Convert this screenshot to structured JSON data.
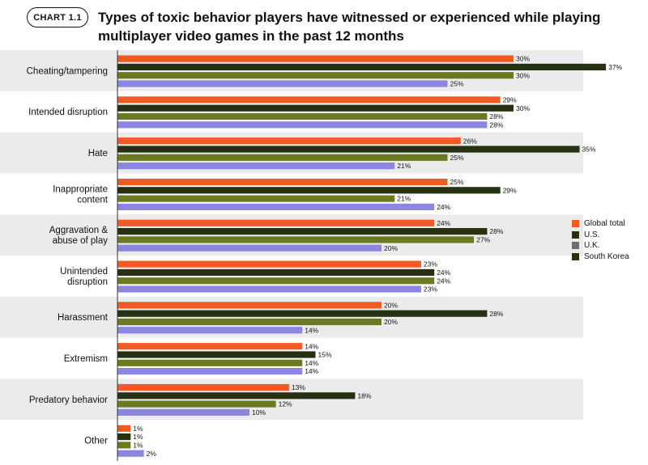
{
  "badge": "CHART 1.1",
  "title_line1": "Types of toxic behavior players have witnessed or experienced while playing",
  "title_line2": "multiplayer video games in the past 12 months",
  "colors": {
    "band": "#ebebeb",
    "axis": "#333333",
    "series": [
      "#f15a22",
      "#263112",
      "#6b7a1e",
      "#8c86e0"
    ],
    "legend_swatches": [
      "#f15a22",
      "#263112",
      "#6e6e6e",
      "#263112"
    ]
  },
  "chart_data": {
    "type": "bar",
    "orientation": "horizontal",
    "title": "Types of toxic behavior players have witnessed or experienced while playing multiplayer video games in the past 12 months",
    "categories": [
      [
        "Cheating/tampering"
      ],
      [
        "Intended disruption"
      ],
      [
        "Hate"
      ],
      [
        "Inappropriate",
        "content"
      ],
      [
        "Aggravation &",
        "abuse of play"
      ],
      [
        "Unintended",
        "disruption"
      ],
      [
        "Harassment"
      ],
      [
        "Extremism"
      ],
      [
        "Predatory behavior"
      ],
      [
        "Other"
      ]
    ],
    "series": [
      {
        "name": "Global total",
        "values": [
          30,
          29,
          26,
          25,
          24,
          23,
          20,
          14,
          13,
          1
        ]
      },
      {
        "name": "U.S.",
        "values": [
          37,
          30,
          35,
          29,
          28,
          24,
          28,
          15,
          18,
          1
        ]
      },
      {
        "name": "U.K.",
        "values": [
          30,
          28,
          25,
          21,
          27,
          24,
          20,
          14,
          12,
          1
        ]
      },
      {
        "name": "South Korea",
        "values": [
          25,
          28,
          21,
          24,
          20,
          23,
          14,
          14,
          10,
          2
        ]
      }
    ],
    "value_suffix": "%",
    "xlim": [
      0,
      40
    ],
    "legend_position": "right"
  }
}
